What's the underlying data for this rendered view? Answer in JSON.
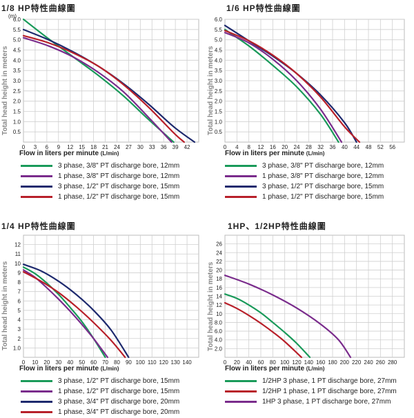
{
  "chart_data": [
    {
      "type": "line",
      "title": "1/8 HP特性曲線圖",
      "ylabel": "Total head height in meters",
      "xlabel": "Flow in liters per minute",
      "xlabel_unit": "(L/min)",
      "yunit": "(m)",
      "xlim": [
        0,
        42
      ],
      "ylim": [
        0,
        6.0
      ],
      "xticks": [
        "0",
        "3",
        "6",
        "9",
        "12",
        "15",
        "18",
        "21",
        "24",
        "27",
        "30",
        "33",
        "36",
        "39",
        "42"
      ],
      "yticks": [
        "0.5",
        "1.0",
        "1.5",
        "2.0",
        "2.5",
        "3.0",
        "3.5",
        "4.0",
        "4.5",
        "5.0",
        "5.5",
        "6.0"
      ],
      "grid": true,
      "series": [
        {
          "name": "3 phase, 3/8\" PT discharge bore, 12mm",
          "color": "#1a9a5a",
          "x": [
            0,
            6,
            12,
            18,
            24,
            30,
            36
          ],
          "y": [
            6.0,
            5.05,
            4.15,
            3.25,
            2.25,
            1.1,
            0
          ]
        },
        {
          "name": "1 phase, 3/8\" PT discharge bore, 12mm",
          "color": "#7a2c8c",
          "x": [
            0,
            6,
            12,
            18,
            24,
            30,
            35.5
          ],
          "y": [
            5.1,
            4.7,
            4.15,
            3.4,
            2.45,
            1.2,
            0
          ]
        },
        {
          "name": "3 phase, 1/2\" PT discharge bore, 15mm",
          "color": "#1e2a6e",
          "x": [
            0,
            6,
            12,
            18,
            24,
            30,
            36,
            41
          ],
          "y": [
            5.5,
            5.0,
            4.4,
            3.7,
            2.85,
            1.85,
            0.75,
            0
          ]
        },
        {
          "name": "1 phase, 1/2\" PT discharge bore, 15mm",
          "color": "#b8202a",
          "x": [
            0,
            6,
            12,
            18,
            24,
            30,
            36,
            38.5
          ],
          "y": [
            5.2,
            4.85,
            4.35,
            3.7,
            2.8,
            1.7,
            0.45,
            0
          ]
        }
      ]
    },
    {
      "type": "line",
      "title": "1/6 HP特性曲線圖",
      "ylabel": "Total head height in meters",
      "xlabel": "Flow in liters per minute",
      "xlabel_unit": "(L/min)",
      "xlim": [
        0,
        60
      ],
      "ylim": [
        0,
        6.0
      ],
      "xticks": [
        "0",
        "4",
        "8",
        "12",
        "16",
        "20",
        "24",
        "28",
        "32",
        "36",
        "40",
        "44",
        "48",
        "52",
        "56"
      ],
      "yticks": [
        "0.5",
        "1.0",
        "1.5",
        "2.0",
        "2.5",
        "3.0",
        "3.5",
        "4.0",
        "4.5",
        "5.0",
        "5.5",
        "6.0"
      ],
      "grid": true,
      "series": [
        {
          "name": "3 phase, 3/8\" PT discharge bore, 12mm",
          "color": "#1a9a5a",
          "x": [
            0,
            8,
            16,
            24,
            32,
            38
          ],
          "y": [
            5.5,
            4.7,
            3.75,
            2.7,
            1.35,
            0
          ]
        },
        {
          "name": "1 phase, 3/8\" PT discharge bore, 12mm",
          "color": "#7a2c8c",
          "x": [
            0,
            8,
            16,
            24,
            32,
            39
          ],
          "y": [
            5.35,
            4.85,
            4.05,
            3.0,
            1.6,
            0
          ]
        },
        {
          "name": "3 phase, 1/2\" PT discharge bore, 15mm",
          "color": "#1e2a6e",
          "x": [
            0,
            8,
            16,
            24,
            32,
            40,
            44
          ],
          "y": [
            5.7,
            4.95,
            4.2,
            3.35,
            2.3,
            0.95,
            0
          ]
        },
        {
          "name": "1 phase, 1/2\" PT discharge bore, 15mm",
          "color": "#b8202a",
          "x": [
            0,
            8,
            16,
            24,
            32,
            40,
            45
          ],
          "y": [
            5.45,
            4.95,
            4.25,
            3.35,
            2.2,
            0.75,
            0
          ]
        }
      ]
    },
    {
      "type": "line",
      "title": "1/4 HP特性曲線圖",
      "ylabel": "Total head height in meters",
      "xlabel": "Flow in liters per minute",
      "xlabel_unit": "(L/min)",
      "xlim": [
        0,
        150
      ],
      "ylim": [
        0,
        13
      ],
      "xticks": [
        "0",
        "10",
        "20",
        "30",
        "40",
        "50",
        "60",
        "70",
        "80",
        "90",
        "100",
        "110",
        "120",
        "130",
        "140"
      ],
      "yticks": [
        "1.0",
        "2",
        "3",
        "4",
        "5",
        "6",
        "7",
        "8",
        "9",
        "10",
        "11",
        "12"
      ],
      "grid": true,
      "series": [
        {
          "name": "3 phase, 1/2\" PT discharge bore, 15mm",
          "color": "#1a9a5a",
          "x": [
            0,
            10,
            20,
            30,
            40,
            50,
            60,
            70
          ],
          "y": [
            9.6,
            8.9,
            7.9,
            6.7,
            5.3,
            3.8,
            2.0,
            0
          ]
        },
        {
          "name": "1 phase, 1/2\" PT discharge bore, 15mm",
          "color": "#7a2c8c",
          "x": [
            0,
            10,
            20,
            30,
            40,
            50,
            60,
            72
          ],
          "y": [
            9.3,
            8.5,
            7.4,
            6.2,
            4.9,
            3.5,
            2.0,
            0
          ]
        },
        {
          "name": "3 phase, 3/4\" PT discharge bore, 20mm",
          "color": "#1e2a6e",
          "x": [
            0,
            15,
            30,
            45,
            60,
            75,
            90
          ],
          "y": [
            9.9,
            9.2,
            8.1,
            6.7,
            5.0,
            2.9,
            0
          ]
        },
        {
          "name": "1 phase, 3/4\" PT discharge bore, 20mm",
          "color": "#b8202a",
          "x": [
            0,
            15,
            30,
            45,
            60,
            75,
            87
          ],
          "y": [
            9.1,
            8.1,
            6.9,
            5.4,
            3.7,
            1.8,
            0
          ]
        }
      ]
    },
    {
      "type": "line",
      "title": "1HP、1/2HP特性曲線圖",
      "ylabel": "Total head height in meters",
      "xlabel": "Flow in liters per minute",
      "xlabel_unit": "(L/min)",
      "xlim": [
        0,
        300
      ],
      "ylim": [
        0,
        28
      ],
      "xticks": [
        "0",
        "20",
        "40",
        "60",
        "80",
        "100",
        "120",
        "140",
        "160",
        "180",
        "200",
        "220",
        "240",
        "260",
        "280"
      ],
      "yticks": [
        "2.0",
        "4.0",
        "6.0",
        "8.0",
        "10",
        "12",
        "14",
        "16",
        "18",
        "20",
        "22",
        "24",
        "26"
      ],
      "grid": true,
      "series": [
        {
          "name": "1/2HP 3 phase, 1 PT discharge bore,  27mm",
          "color": "#1a9a5a",
          "x": [
            0,
            20,
            40,
            60,
            80,
            100,
            120,
            142
          ],
          "y": [
            14.5,
            13.5,
            12.0,
            10.2,
            8.0,
            5.7,
            3.2,
            0
          ]
        },
        {
          "name": "1/2HP 1 phase, 1 PT discharge bore,  27mm",
          "color": "#b8202a",
          "x": [
            0,
            20,
            40,
            60,
            80,
            100,
            128
          ],
          "y": [
            12.5,
            11.2,
            9.6,
            7.8,
            5.8,
            3.6,
            0
          ]
        },
        {
          "name": "1HP 3 phase, 1 PT discharge bore,  27mm",
          "color": "#7a2c8c",
          "x": [
            0,
            40,
            80,
            120,
            160,
            190,
            210
          ],
          "y": [
            18.8,
            16.8,
            14.3,
            11.3,
            7.6,
            4.0,
            0
          ]
        }
      ]
    }
  ]
}
